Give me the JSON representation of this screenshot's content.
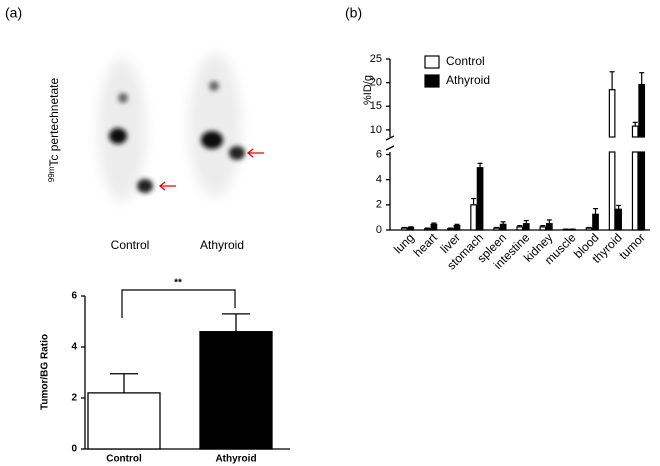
{
  "figure": {
    "image_ylabel_sup": "99m",
    "image_ylabel": "Tc pertechnetate",
    "image_labels": [
      "Control",
      "Athyroid"
    ]
  },
  "chart_data": [
    {
      "type": "bar",
      "panel": "(a)",
      "ylabel": "Tumor/BG Ratio",
      "categories": [
        "Control",
        "Athyroid"
      ],
      "values": [
        2.2,
        4.6
      ],
      "errors": [
        0.75,
        0.7
      ],
      "colors": [
        "#ffffff",
        "#000000"
      ],
      "ylim": [
        0,
        6
      ],
      "yticks": [
        0,
        2,
        4,
        6
      ],
      "annotation": "**"
    },
    {
      "type": "grouped_bar",
      "panel": "(b)",
      "ylabel": "%ID/g",
      "legend": "top-left",
      "categories": [
        "lung",
        "heart",
        "liver",
        "stomach",
        "spleen",
        "intestine",
        "kidney",
        "muscle",
        "blood",
        "thyroid",
        "tumor"
      ],
      "series": [
        {
          "name": "Control",
          "color": "#ffffff",
          "values": [
            0.15,
            0.1,
            0.1,
            2.0,
            0.15,
            0.25,
            0.25,
            0.05,
            0.15,
            18.5,
            10.8
          ],
          "errors": [
            0.05,
            0.05,
            0.05,
            0.5,
            0.05,
            0.1,
            0.1,
            0.02,
            0.05,
            3.8,
            0.8
          ]
        },
        {
          "name": "Athyroid",
          "color": "#000000",
          "values": [
            0.2,
            0.45,
            0.35,
            4.95,
            0.45,
            0.5,
            0.5,
            0.05,
            1.25,
            1.65,
            19.6
          ],
          "errors": [
            0.05,
            0.1,
            0.1,
            0.35,
            0.2,
            0.25,
            0.3,
            0.02,
            0.45,
            0.3,
            2.5
          ]
        }
      ],
      "segments": [
        {
          "ylim": [
            0,
            6.2
          ],
          "yticks": [
            0,
            2,
            4,
            6
          ]
        },
        {
          "ylim": [
            8.5,
            25
          ],
          "yticks": [
            10,
            15,
            20,
            25
          ]
        }
      ]
    }
  ]
}
